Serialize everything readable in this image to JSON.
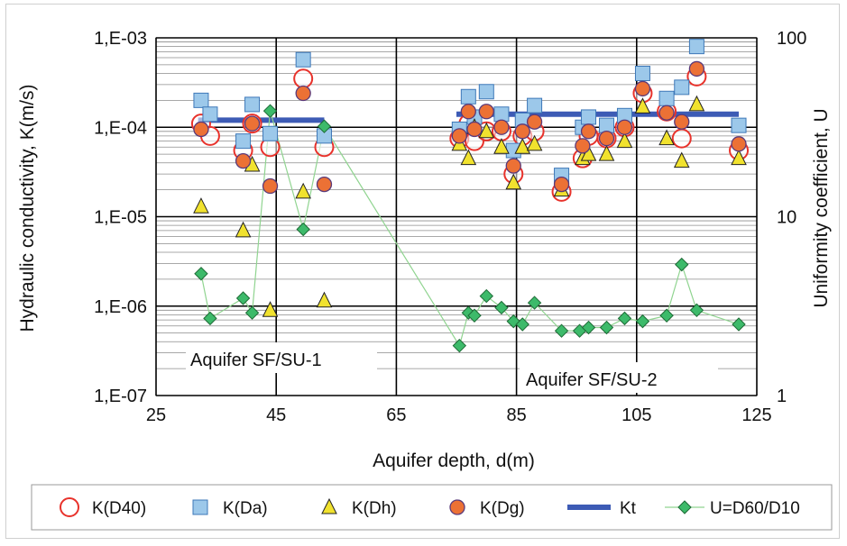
{
  "chart_data": {
    "type": "scatter",
    "xlabel": "Aquifer depth, d(m)",
    "ylabel_left": "Hydraulic conductivity, K(m/s)",
    "ylabel_right": "Uniformity coefficient, U",
    "xlim": [
      25,
      125
    ],
    "xticks": [
      "25",
      "45",
      "65",
      "85",
      "105",
      "125"
    ],
    "ylim_left": [
      1e-07,
      0.001
    ],
    "yticks_left": [
      "1,E-07",
      "1,E-06",
      "1,E-05",
      "1,E-04",
      "1,E-03"
    ],
    "ylim_right": [
      1,
      100
    ],
    "yticks_right": [
      "1",
      "10",
      "100"
    ],
    "yscale": "log",
    "grid": true,
    "legend_position": "bottom",
    "regions": [
      "Aquifer SF/SU-1",
      "Aquifer SF/SU-2"
    ],
    "series": [
      {
        "name": "K(D40)",
        "marker": "circle-open",
        "color": "#e8322b",
        "axis": "left",
        "x": [
          32.5,
          34,
          39.5,
          41,
          44,
          49.5,
          53,
          75.5,
          77,
          78,
          80,
          82.5,
          84.5,
          86,
          88,
          92.5,
          96,
          97,
          100,
          103,
          106,
          110,
          112.5,
          115,
          122
        ],
        "y": [
          0.00011,
          8e-05,
          5.5e-05,
          0.00011,
          6e-05,
          0.00035,
          6e-05,
          7.5e-05,
          0.00011,
          7e-05,
          9e-05,
          9e-05,
          3e-05,
          8e-05,
          9e-05,
          1.9e-05,
          4.5e-05,
          8e-05,
          7.5e-05,
          0.0001,
          0.00024,
          0.00015,
          7.5e-05,
          0.00037,
          5.5e-05
        ]
      },
      {
        "name": "K(Da)",
        "marker": "square",
        "color": "#9cc8ea",
        "axis": "left",
        "x": [
          32.5,
          34,
          39.5,
          41,
          44,
          49.5,
          53,
          75.5,
          77,
          78,
          80,
          82.5,
          84.5,
          86,
          88,
          92.5,
          96,
          97,
          100,
          103,
          106,
          110,
          112.5,
          115,
          122
        ],
        "y": [
          0.0002,
          0.00014,
          7e-05,
          0.00018,
          8.5e-05,
          0.00057,
          8e-05,
          9.5e-05,
          0.00022,
          0.00013,
          0.00025,
          0.00014,
          5.5e-05,
          0.00012,
          0.000175,
          2.9e-05,
          0.0001,
          0.00013,
          0.000105,
          0.000135,
          0.0004,
          0.00021,
          0.00028,
          0.0008,
          0.000105
        ]
      },
      {
        "name": "K(Dh)",
        "marker": "triangle",
        "color": "#f1e22e",
        "axis": "left",
        "x": [
          32.5,
          39.5,
          41,
          44,
          49.5,
          53,
          75.5,
          77,
          78,
          80,
          82.5,
          84.5,
          86,
          88,
          92.5,
          96,
          97,
          100,
          103,
          106,
          110,
          112.5,
          115,
          122
        ],
        "y": [
          1.3e-05,
          7e-06,
          3.8e-05,
          9e-07,
          1.9e-05,
          1.15e-06,
          6.5e-05,
          4.5e-05,
          0.0001,
          9e-05,
          6e-05,
          2.4e-05,
          6e-05,
          6.5e-05,
          2e-05,
          4.5e-05,
          5e-05,
          5e-05,
          7e-05,
          0.00017,
          7.5e-05,
          4.2e-05,
          0.00018,
          4.5e-05
        ]
      },
      {
        "name": "K(Dg)",
        "marker": "circle-filled",
        "color": "#ec7135",
        "axis": "left",
        "x": [
          32.5,
          39.5,
          41,
          44,
          49.5,
          53,
          75.5,
          77,
          78,
          80,
          82.5,
          84.5,
          86,
          88,
          92.5,
          96,
          97,
          100,
          103,
          106,
          110,
          112.5,
          115,
          122
        ],
        "y": [
          9.5e-05,
          4.2e-05,
          0.00011,
          2.2e-05,
          0.00024,
          2.3e-05,
          8e-05,
          0.00015,
          9.5e-05,
          0.00015,
          0.0001,
          3.7e-05,
          9e-05,
          0.000115,
          2.3e-05,
          6.2e-05,
          9e-05,
          7.5e-05,
          0.0001,
          0.00027,
          0.000145,
          0.000115,
          0.00045,
          6.5e-05
        ]
      },
      {
        "name": "Kt",
        "marker": "line",
        "color": "#3d5bb5",
        "axis": "left",
        "segments": [
          {
            "x": [
              32,
              53
            ],
            "y": [
              0.00012,
              0.00012
            ]
          },
          {
            "x": [
              75,
              122
            ],
            "y": [
              0.00014,
              0.00014
            ]
          }
        ]
      },
      {
        "name": "U=D60/D10",
        "marker": "diamond-line",
        "color": "#3dba6a",
        "line_color": "#90d490",
        "axis": "right",
        "x": [
          32.5,
          34,
          39.5,
          41,
          44,
          49.5,
          53,
          75.5,
          77,
          78,
          80,
          82.5,
          84.5,
          86,
          88,
          92.5,
          95.5,
          97,
          100,
          103,
          106,
          110,
          112.5,
          115,
          122
        ],
        "y": [
          4.8,
          2.7,
          3.5,
          2.9,
          39,
          8.5,
          32,
          1.9,
          2.9,
          2.8,
          3.6,
          3.1,
          2.6,
          2.5,
          3.3,
          2.3,
          2.3,
          2.4,
          2.4,
          2.7,
          2.6,
          2.8,
          5.4,
          3.0,
          2.5
        ]
      }
    ]
  }
}
